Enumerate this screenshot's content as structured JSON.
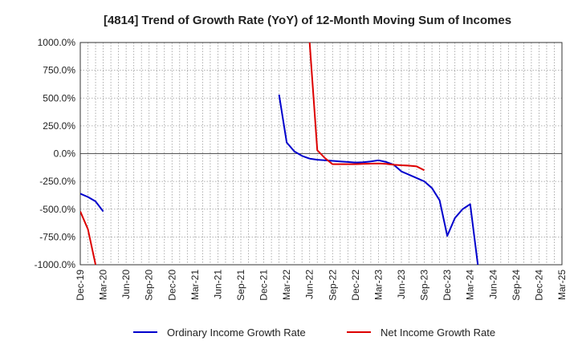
{
  "chart_data": {
    "type": "line",
    "title": "[4814]  Trend of Growth Rate (YoY) of 12-Month Moving Sum of Incomes",
    "xlabel": "",
    "ylabel": "",
    "ylim": [
      -1000,
      1000
    ],
    "grid": true,
    "legend_position": "bottom",
    "y_ticks": [
      1000,
      750,
      500,
      250,
      0,
      -250,
      -500,
      -750,
      -1000
    ],
    "y_tick_labels": [
      "1000.0%",
      "750.0%",
      "500.0%",
      "250.0%",
      "0.0%",
      "-250.0%",
      "-500.0%",
      "-750.0%",
      "-1000.0%"
    ],
    "x_range": [
      "Dec-19",
      "Mar-25"
    ],
    "x_tick_labels": [
      "Dec-19",
      "Mar-20",
      "Jun-20",
      "Sep-20",
      "Dec-20",
      "Mar-21",
      "Jun-21",
      "Sep-21",
      "Dec-21",
      "Mar-22",
      "Jun-22",
      "Sep-22",
      "Dec-22",
      "Mar-23",
      "Jun-23",
      "Sep-23",
      "Dec-23",
      "Mar-24",
      "Jun-24",
      "Sep-24",
      "Dec-24",
      "Mar-25"
    ],
    "series": [
      {
        "name": "Ordinary Income Growth Rate",
        "color": "#0000cc",
        "points": [
          [
            "Dec-19",
            -360
          ],
          [
            "Jan-20",
            -390
          ],
          [
            "Feb-20",
            -430
          ],
          [
            "Mar-20",
            -520
          ],
          [
            "Feb-22",
            530
          ],
          [
            "Mar-22",
            100
          ],
          [
            "Apr-22",
            20
          ],
          [
            "May-22",
            -20
          ],
          [
            "Jun-22",
            -45
          ],
          [
            "Jul-22",
            -55
          ],
          [
            "Aug-22",
            -60
          ],
          [
            "Sep-22",
            -65
          ],
          [
            "Oct-22",
            -70
          ],
          [
            "Nov-22",
            -75
          ],
          [
            "Dec-22",
            -80
          ],
          [
            "Jan-23",
            -78
          ],
          [
            "Feb-23",
            -70
          ],
          [
            "Mar-23",
            -60
          ],
          [
            "Apr-23",
            -75
          ],
          [
            "May-23",
            -100
          ],
          [
            "Jun-23",
            -160
          ],
          [
            "Jul-23",
            -190
          ],
          [
            "Aug-23",
            -220
          ],
          [
            "Sep-23",
            -250
          ],
          [
            "Oct-23",
            -310
          ],
          [
            "Nov-23",
            -420
          ],
          [
            "Dec-23",
            -740
          ],
          [
            "Jan-24",
            -580
          ],
          [
            "Feb-24",
            -500
          ],
          [
            "Mar-24",
            -455
          ],
          [
            "Apr-24",
            -1000
          ]
        ]
      },
      {
        "name": "Net Income Growth Rate",
        "color": "#dd0000",
        "points": [
          [
            "Dec-19",
            -520
          ],
          [
            "Jan-20",
            -680
          ],
          [
            "Feb-20",
            -1000
          ],
          [
            "Jun-22",
            1000
          ],
          [
            "Jul-22",
            30
          ],
          [
            "Aug-22",
            -40
          ],
          [
            "Sep-22",
            -95
          ],
          [
            "Oct-22",
            -95
          ],
          [
            "Nov-22",
            -95
          ],
          [
            "Dec-22",
            -95
          ],
          [
            "Jan-23",
            -92
          ],
          [
            "Feb-23",
            -90
          ],
          [
            "Mar-23",
            -88
          ],
          [
            "Apr-23",
            -92
          ],
          [
            "May-23",
            -100
          ],
          [
            "Jun-23",
            -105
          ],
          [
            "Jul-23",
            -108
          ],
          [
            "Aug-23",
            -115
          ],
          [
            "Sep-23",
            -150
          ]
        ]
      }
    ]
  }
}
